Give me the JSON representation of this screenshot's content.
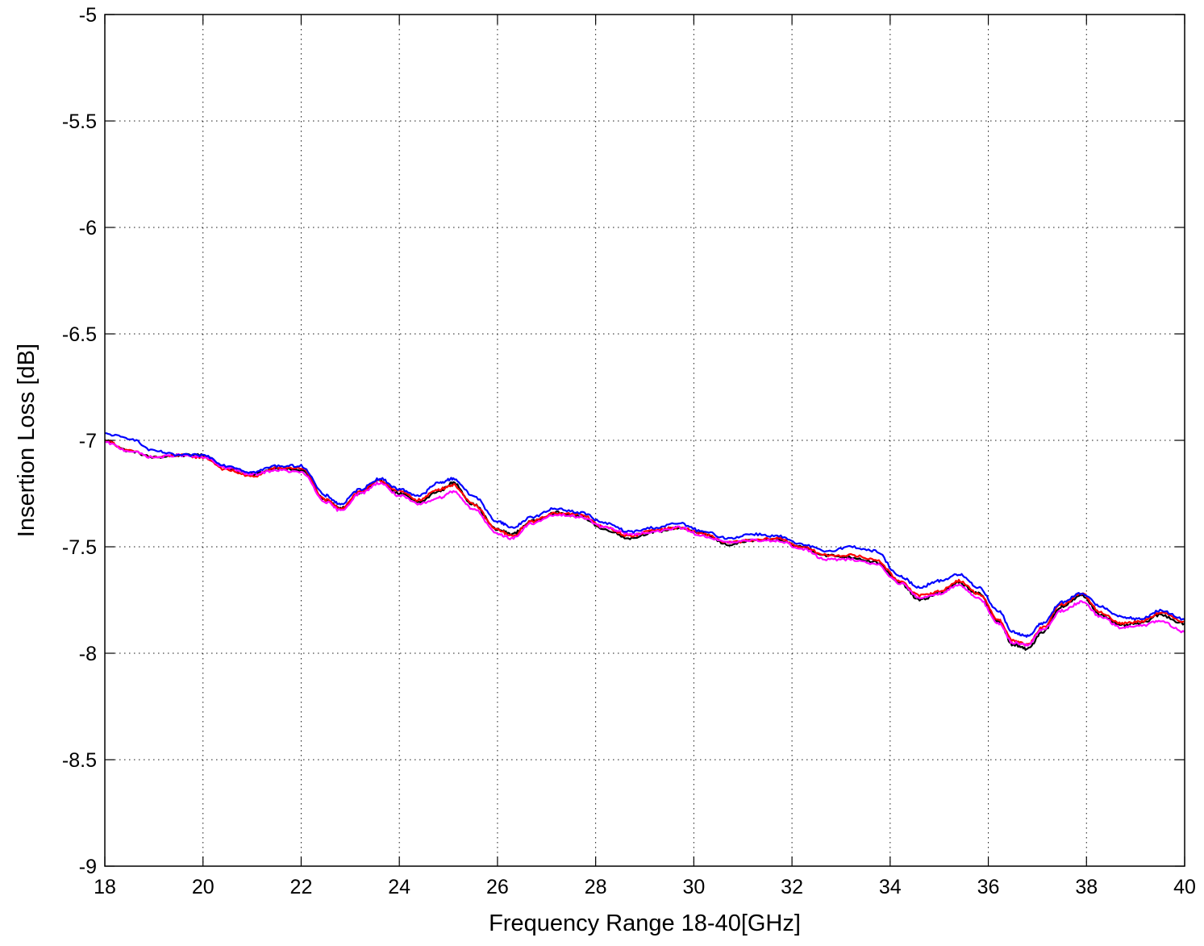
{
  "chart_data": {
    "type": "line",
    "title": "",
    "xlabel": "Frequency Range 18-40[GHz]",
    "ylabel": "Insertion Loss [dB]",
    "xlim": [
      18,
      40
    ],
    "ylim": [
      -9,
      -5
    ],
    "xticks": [
      18,
      20,
      22,
      24,
      26,
      28,
      30,
      32,
      34,
      36,
      38,
      40
    ],
    "yticks": [
      -5,
      -5.5,
      -6,
      -6.5,
      -7,
      -7.5,
      -8,
      -8.5,
      -9
    ],
    "xtick_labels": [
      "18",
      "20",
      "22",
      "24",
      "26",
      "28",
      "30",
      "32",
      "34",
      "36",
      "38",
      "40"
    ],
    "ytick_labels": [
      "-5",
      "-5.5",
      "-6",
      "-6.5",
      "-7",
      "-7.5",
      "-8",
      "-8.5",
      "-9"
    ],
    "grid": true,
    "legend": "none",
    "series": [
      {
        "color": "#000000",
        "x": [
          18,
          18.5,
          19,
          19.5,
          20,
          20.5,
          21,
          21.5,
          22,
          22.5,
          22.8,
          23.2,
          23.6,
          24.0,
          24.4,
          24.8,
          25.1,
          25.5,
          26.0,
          26.3,
          26.7,
          27.2,
          27.7,
          28.2,
          28.7,
          29.2,
          29.7,
          30.2,
          30.7,
          31.2,
          31.7,
          32.2,
          32.7,
          33.2,
          33.7,
          34.2,
          34.6,
          35.0,
          35.4,
          35.8,
          36.2,
          36.5,
          36.8,
          37.1,
          37.5,
          37.9,
          38.3,
          38.7,
          39.1,
          39.5,
          40.0
        ],
        "y": [
          -7.0,
          -7.05,
          -7.08,
          -7.07,
          -7.07,
          -7.13,
          -7.16,
          -7.13,
          -7.14,
          -7.28,
          -7.32,
          -7.25,
          -7.19,
          -7.25,
          -7.29,
          -7.24,
          -7.2,
          -7.3,
          -7.42,
          -7.44,
          -7.38,
          -7.34,
          -7.36,
          -7.42,
          -7.46,
          -7.43,
          -7.41,
          -7.44,
          -7.49,
          -7.47,
          -7.47,
          -7.5,
          -7.54,
          -7.55,
          -7.57,
          -7.67,
          -7.75,
          -7.72,
          -7.67,
          -7.72,
          -7.85,
          -7.96,
          -7.98,
          -7.9,
          -7.78,
          -7.73,
          -7.82,
          -7.87,
          -7.86,
          -7.82,
          -7.86
        ]
      },
      {
        "color": "#ff0000",
        "x": [
          18,
          18.5,
          19,
          19.5,
          20,
          20.5,
          21,
          21.5,
          22,
          22.5,
          22.8,
          23.2,
          23.6,
          24.0,
          24.4,
          24.8,
          25.1,
          25.5,
          26.0,
          26.3,
          26.7,
          27.2,
          27.7,
          28.2,
          28.7,
          29.2,
          29.7,
          30.2,
          30.7,
          31.2,
          31.7,
          32.2,
          32.7,
          33.2,
          33.7,
          34.2,
          34.6,
          35.0,
          35.4,
          35.8,
          36.2,
          36.5,
          36.8,
          37.1,
          37.5,
          37.9,
          38.3,
          38.7,
          39.1,
          39.5,
          40.0
        ],
        "y": [
          -7.0,
          -7.05,
          -7.08,
          -7.07,
          -7.08,
          -7.14,
          -7.17,
          -7.13,
          -7.13,
          -7.28,
          -7.32,
          -7.24,
          -7.19,
          -7.24,
          -7.28,
          -7.23,
          -7.21,
          -7.3,
          -7.42,
          -7.45,
          -7.38,
          -7.34,
          -7.35,
          -7.41,
          -7.45,
          -7.42,
          -7.41,
          -7.44,
          -7.48,
          -7.47,
          -7.46,
          -7.5,
          -7.54,
          -7.54,
          -7.56,
          -7.66,
          -7.73,
          -7.71,
          -7.66,
          -7.72,
          -7.84,
          -7.94,
          -7.96,
          -7.88,
          -7.77,
          -7.72,
          -7.81,
          -7.86,
          -7.85,
          -7.81,
          -7.85
        ]
      },
      {
        "color": "#0000ff",
        "x": [
          18,
          18.5,
          19,
          19.5,
          20,
          20.5,
          21,
          21.5,
          22,
          22.5,
          22.8,
          23.2,
          23.6,
          24.0,
          24.4,
          24.8,
          25.1,
          25.5,
          26.0,
          26.3,
          26.7,
          27.2,
          27.7,
          28.2,
          28.7,
          29.2,
          29.7,
          30.2,
          30.7,
          31.2,
          31.7,
          32.2,
          32.7,
          33.2,
          33.7,
          34.2,
          34.6,
          35.0,
          35.4,
          35.8,
          36.2,
          36.5,
          36.8,
          37.1,
          37.5,
          37.9,
          38.3,
          38.7,
          39.1,
          39.5,
          40.0
        ],
        "y": [
          -6.97,
          -6.99,
          -7.05,
          -7.07,
          -7.07,
          -7.12,
          -7.15,
          -7.12,
          -7.12,
          -7.26,
          -7.3,
          -7.23,
          -7.18,
          -7.23,
          -7.26,
          -7.2,
          -7.18,
          -7.26,
          -7.38,
          -7.41,
          -7.36,
          -7.32,
          -7.34,
          -7.39,
          -7.43,
          -7.41,
          -7.39,
          -7.43,
          -7.46,
          -7.44,
          -7.45,
          -7.49,
          -7.52,
          -7.5,
          -7.52,
          -7.64,
          -7.69,
          -7.66,
          -7.63,
          -7.69,
          -7.8,
          -7.9,
          -7.92,
          -7.86,
          -7.76,
          -7.72,
          -7.78,
          -7.83,
          -7.84,
          -7.8,
          -7.84
        ]
      },
      {
        "color": "#ff00ff",
        "x": [
          18,
          18.5,
          19,
          19.5,
          20,
          20.5,
          21,
          21.5,
          22,
          22.5,
          22.8,
          23.2,
          23.6,
          24.0,
          24.4,
          24.8,
          25.1,
          25.5,
          26.0,
          26.3,
          26.7,
          27.2,
          27.7,
          28.2,
          28.7,
          29.2,
          29.7,
          30.2,
          30.7,
          31.2,
          31.7,
          32.2,
          32.7,
          33.2,
          33.7,
          34.2,
          34.6,
          35.0,
          35.4,
          35.8,
          36.2,
          36.5,
          36.8,
          37.1,
          37.5,
          37.9,
          38.3,
          38.7,
          39.1,
          39.5,
          40.0
        ],
        "y": [
          -7.01,
          -7.05,
          -7.08,
          -7.07,
          -7.08,
          -7.13,
          -7.16,
          -7.14,
          -7.15,
          -7.29,
          -7.33,
          -7.25,
          -7.2,
          -7.26,
          -7.3,
          -7.27,
          -7.24,
          -7.32,
          -7.44,
          -7.46,
          -7.39,
          -7.35,
          -7.36,
          -7.41,
          -7.44,
          -7.43,
          -7.41,
          -7.45,
          -7.48,
          -7.47,
          -7.47,
          -7.51,
          -7.56,
          -7.56,
          -7.58,
          -7.67,
          -7.74,
          -7.72,
          -7.68,
          -7.74,
          -7.86,
          -7.95,
          -7.96,
          -7.89,
          -7.8,
          -7.76,
          -7.83,
          -7.88,
          -7.87,
          -7.85,
          -7.9
        ]
      }
    ]
  }
}
